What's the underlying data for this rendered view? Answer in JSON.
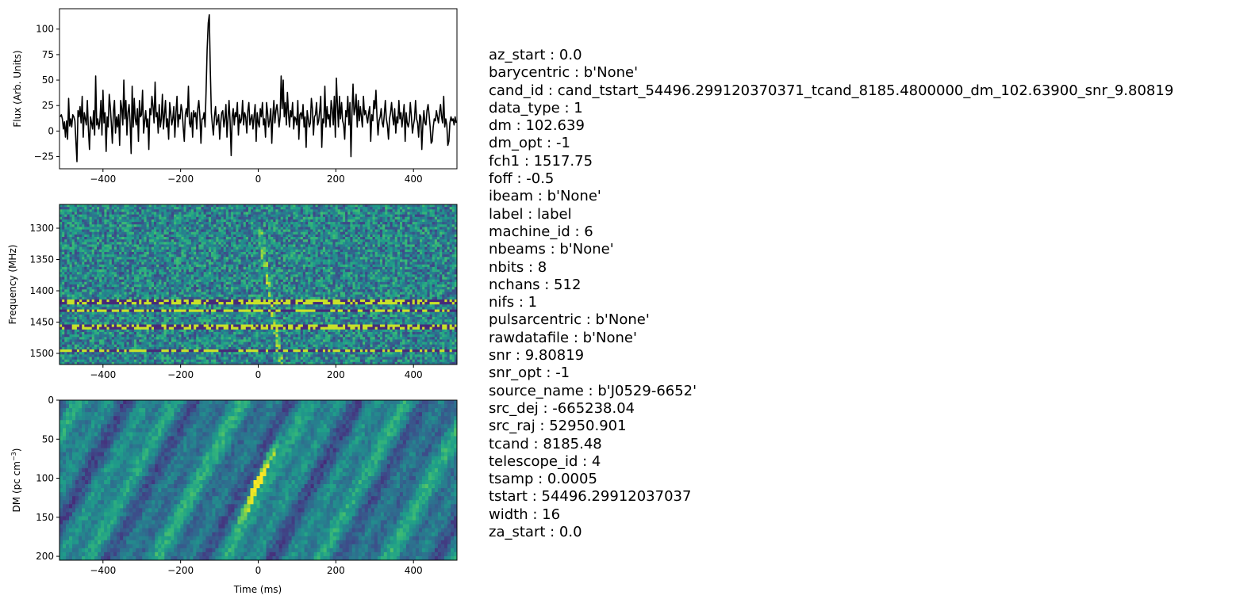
{
  "chart_data": [
    {
      "type": "line",
      "panel": "pulse-profile",
      "title": "",
      "xlabel": "",
      "ylabel": "Flux (Arb. Units)",
      "xlim": [
        -512,
        512
      ],
      "ylim": [
        -37,
        120
      ],
      "xticks": [
        -400,
        -200,
        0,
        200,
        400
      ],
      "xtick_labels": [
        "−400",
        "−200",
        "0",
        "200",
        "400"
      ],
      "yticks": [
        -25,
        0,
        25,
        50,
        75,
        100
      ],
      "ytick_labels": [
        "−25",
        "0",
        "25",
        "50",
        "75",
        "100"
      ],
      "line_color": "#000000",
      "grid": false,
      "x_range": [
        -510,
        510
      ],
      "peak": {
        "x": 2,
        "y": 114
      },
      "values": [
        14,
        16,
        12,
        2,
        9,
        -6,
        10,
        -8,
        32,
        5,
        12,
        4,
        16,
        14,
        10,
        -10,
        -30,
        20,
        14,
        24,
        8,
        34,
        -6,
        18,
        12,
        6,
        30,
        2,
        -18,
        14,
        8,
        2,
        20,
        -4,
        54,
        6,
        12,
        2,
        10,
        30,
        -4,
        40,
        8,
        18,
        -20,
        14,
        4,
        36,
        24,
        8,
        -12,
        20,
        30,
        -2,
        14,
        4,
        16,
        -14,
        30,
        22,
        6,
        50,
        12,
        30,
        -4,
        18,
        26,
        8,
        -22,
        44,
        4,
        32,
        12,
        6,
        22,
        -10,
        30,
        14,
        16,
        40,
        -2,
        10,
        20,
        4,
        12,
        -18,
        22,
        16,
        34,
        24,
        8,
        48,
        14,
        18,
        -2,
        26,
        4,
        12,
        36,
        2,
        16,
        30,
        4,
        12,
        -8,
        28,
        18,
        6,
        12,
        24,
        -6,
        18,
        34,
        4,
        16,
        12,
        26,
        20,
        4,
        -10,
        16,
        22,
        14,
        44,
        8,
        4,
        18,
        -6,
        20,
        14,
        18,
        2,
        22,
        30,
        14,
        -12,
        12,
        12,
        18,
        4,
        40,
        80,
        106,
        114,
        60,
        18,
        6,
        -4,
        14,
        24,
        6,
        10,
        16,
        -8,
        8,
        18,
        20,
        4,
        12,
        26,
        -6,
        12,
        30,
        10,
        -24,
        14,
        22,
        6,
        18,
        14,
        28,
        -4,
        16,
        8,
        12,
        30,
        6,
        18,
        14,
        -2,
        20,
        28,
        6,
        12,
        16,
        2,
        14,
        26,
        -10,
        18,
        8,
        4,
        22,
        14,
        28,
        6,
        12,
        -6,
        28,
        18,
        4,
        10,
        22,
        -12,
        14,
        30,
        8,
        20,
        26,
        16,
        4,
        14,
        54,
        22,
        50,
        14,
        28,
        6,
        38,
        18,
        4,
        20,
        14,
        28,
        2,
        14,
        12,
        6,
        30,
        -8,
        16,
        18,
        12,
        26,
        4,
        14,
        -16,
        20,
        12,
        4,
        8,
        32,
        22,
        -4,
        14,
        16,
        28,
        6,
        10,
        20,
        34,
        -16,
        12,
        8,
        44,
        4,
        24,
        12,
        16,
        4,
        30,
        22,
        6,
        34,
        -6,
        52,
        26,
        4,
        34,
        12,
        28,
        10,
        6,
        -8,
        20,
        14,
        34,
        6,
        28,
        -25,
        18,
        46,
        16,
        22,
        36,
        4,
        30,
        10,
        24,
        14,
        4,
        34,
        16,
        20,
        14,
        8,
        18,
        24,
        -10,
        16,
        10,
        30,
        22,
        40,
        14,
        -4,
        10,
        14,
        22,
        8,
        4,
        16,
        30,
        12,
        6,
        -8,
        12,
        18,
        28,
        14,
        6,
        22,
        -2,
        14,
        8,
        30,
        12,
        18,
        4,
        14,
        26,
        -10,
        18,
        8,
        4,
        10,
        28,
        14,
        -2,
        6,
        12,
        30,
        12,
        8,
        -6,
        16,
        14,
        -18,
        6,
        20,
        8,
        6,
        20,
        26,
        16,
        4,
        -12,
        -10,
        4,
        12,
        10,
        20,
        14,
        8,
        18,
        26,
        14,
        8,
        34,
        4,
        12,
        6,
        -14,
        -10,
        8,
        14,
        10,
        12,
        6,
        14,
        8
      ],
      "series": [
        {
          "name": "",
          "values": []
        }
      ]
    },
    {
      "type": "heatmap",
      "panel": "frequency-time",
      "title": "",
      "xlabel": "",
      "ylabel": "Frequency (MHz)",
      "xlim": [
        -512,
        512
      ],
      "ylim": [
        1517.75,
        1262
      ],
      "xticks": [
        -400,
        -200,
        0,
        200,
        400
      ],
      "xtick_labels": [
        "−400",
        "−200",
        "0",
        "200",
        "400"
      ],
      "yticks": [
        1300,
        1350,
        1400,
        1450,
        1500
      ],
      "ytick_labels": [
        "1300",
        "1350",
        "1400",
        "1450",
        "1500"
      ],
      "colormap": "viridis",
      "rfi_lines_mhz": [
        1418,
        1433,
        1458,
        1495
      ],
      "dispersed_sweep": {
        "t_ms": [
          2,
          60
        ],
        "freq_mhz": [
          1300,
          1517
        ]
      }
    },
    {
      "type": "heatmap",
      "panel": "dm-time",
      "title": "",
      "xlabel": "Time (ms)",
      "ylabel": "DM (pc cm",
      "ylabel_sup": "−3",
      "ylabel_end": ")",
      "xlim": [
        -512,
        512
      ],
      "ylim": [
        205,
        0
      ],
      "xticks": [
        -400,
        -200,
        0,
        200,
        400
      ],
      "xtick_labels": [
        "−400",
        "−200",
        "0",
        "200",
        "400"
      ],
      "yticks": [
        0,
        50,
        100,
        150,
        200
      ],
      "ytick_labels": [
        "0",
        "50",
        "100",
        "150",
        "200"
      ],
      "colormap": "viridis",
      "peak": {
        "t_ms": 2,
        "dm": 102.639
      }
    }
  ],
  "parameters": [
    "az_start : 0.0",
    "barycentric : b'None'",
    "cand_id : cand_tstart_54496.299120370371_tcand_8185.4800000_dm_102.63900_snr_9.80819",
    "data_type : 1",
    "dm : 102.639",
    "dm_opt : -1",
    "fch1 : 1517.75",
    "foff : -0.5",
    "ibeam : b'None'",
    "label : label",
    "machine_id : 6",
    "nbeams : b'None'",
    "nbits : 8",
    "nchans : 512",
    "nifs : 1",
    "pulsarcentric : b'None'",
    "rawdatafile : b'None'",
    "snr : 9.80819",
    "snr_opt : -1",
    "source_name : b'J0529-6652'",
    "src_dej : -665238.04",
    "src_raj : 52950.901",
    "tcand : 8185.48",
    "telescope_id : 4",
    "tsamp : 0.0005",
    "tstart : 54496.29912037037",
    "width : 16",
    "za_start : 0.0"
  ]
}
